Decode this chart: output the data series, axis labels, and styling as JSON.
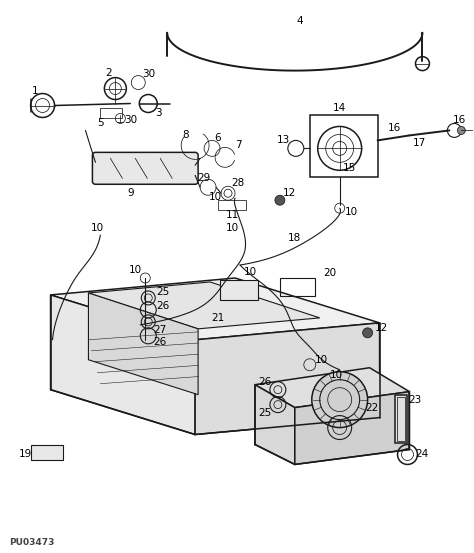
{
  "bg_color": "#ffffff",
  "line_color": "#1a1a1a",
  "label_color": "#000000",
  "watermark": "PU03473",
  "fig_width": 4.74,
  "fig_height": 5.53,
  "dpi": 100,
  "lw_main": 1.1,
  "lw_med": 0.8,
  "lw_thin": 0.55,
  "label_fs": 7.5
}
